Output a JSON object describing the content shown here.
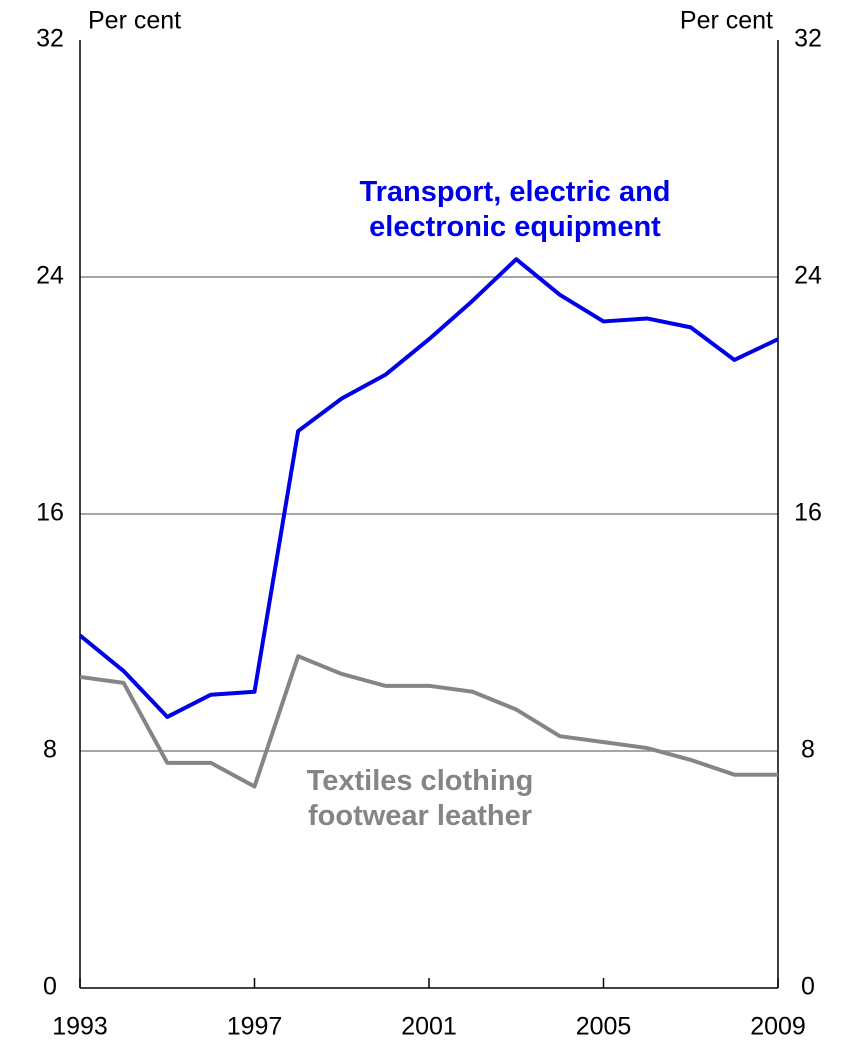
{
  "chart_data": {
    "type": "line",
    "y_label": "Per cent",
    "y2_label": "Per cent",
    "x": [
      1993,
      1994,
      1995,
      1996,
      1997,
      1998,
      1999,
      2000,
      2001,
      2002,
      2003,
      2004,
      2005,
      2006,
      2007,
      2008,
      2009
    ],
    "series": [
      {
        "name": "Transport, electric and electronic equipment",
        "color": "#0000e6",
        "values": [
          11.9,
          10.7,
          9.15,
          9.9,
          10.0,
          18.8,
          19.9,
          20.7,
          21.9,
          23.2,
          24.6,
          23.4,
          22.5,
          22.6,
          22.3,
          21.2,
          21.9
        ]
      },
      {
        "name": "Textiles clothing footwear leather",
        "color": "#858585",
        "values": [
          10.5,
          10.3,
          7.6,
          7.6,
          6.8,
          11.2,
          10.6,
          10.2,
          10.2,
          10.0,
          9.4,
          8.5,
          8.3,
          8.1,
          7.7,
          7.2,
          7.2
        ]
      }
    ],
    "xlim": [
      1993,
      2009
    ],
    "xticks": [
      1993,
      1997,
      2001,
      2005,
      2009
    ],
    "ylim": [
      0,
      32
    ],
    "yticks": [
      0,
      8,
      16,
      24,
      32
    ],
    "y2lim": [
      0,
      32
    ],
    "y2ticks": [
      0,
      8,
      16,
      24,
      32
    ],
    "grid": true
  }
}
